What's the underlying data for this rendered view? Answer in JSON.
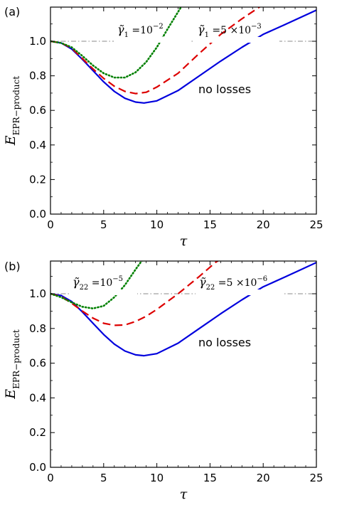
{
  "chart_data": [
    {
      "type": "line",
      "panel_label": "(a)",
      "xlabel": "τ",
      "ylabel_main": "E",
      "ylabel_sub": "EPR−product",
      "xlim": [
        0,
        25
      ],
      "ylim": [
        0,
        1.2
      ],
      "xticks": [
        0,
        5,
        10,
        15,
        20,
        25
      ],
      "yticks": [
        0.0,
        0.2,
        0.4,
        0.6,
        0.8,
        1.0
      ],
      "xtick_labels": [
        "0",
        "5",
        "10",
        "15",
        "20",
        "25"
      ],
      "ytick_labels": [
        "0.0",
        "0.2",
        "0.4",
        "0.6",
        "0.8",
        "1.0"
      ],
      "grid": false,
      "reference_line": {
        "y": 1.0,
        "color": "#888888",
        "style": "dash-dot"
      },
      "series": [
        {
          "color": "#0000dd",
          "style": "solid",
          "points": [
            [
              0,
              1.0
            ],
            [
              1,
              0.99
            ],
            [
              2,
              0.955
            ],
            [
              3,
              0.895
            ],
            [
              4,
              0.83
            ],
            [
              5,
              0.765
            ],
            [
              6,
              0.71
            ],
            [
              7,
              0.67
            ],
            [
              8,
              0.648
            ],
            [
              8.8,
              0.643
            ],
            [
              10,
              0.655
            ],
            [
              12,
              0.715
            ],
            [
              14,
              0.8
            ],
            [
              16,
              0.885
            ],
            [
              18,
              0.965
            ],
            [
              20,
              1.04
            ],
            [
              22,
              1.095
            ],
            [
              25,
              1.18
            ]
          ]
        },
        {
          "color": "#dd0000",
          "style": "dashed",
          "points": [
            [
              0,
              1.0
            ],
            [
              1,
              0.99
            ],
            [
              2,
              0.96
            ],
            [
              3,
              0.9
            ],
            [
              4,
              0.84
            ],
            [
              5,
              0.785
            ],
            [
              6,
              0.74
            ],
            [
              7,
              0.71
            ],
            [
              8,
              0.697
            ],
            [
              9,
              0.705
            ],
            [
              10,
              0.735
            ],
            [
              12,
              0.815
            ],
            [
              14,
              0.93
            ],
            [
              16,
              1.04
            ],
            [
              18,
              1.13
            ],
            [
              19.7,
              1.2
            ]
          ]
        },
        {
          "color": "#008000",
          "style": "dotted",
          "points": [
            [
              0,
              1.0
            ],
            [
              1,
              0.99
            ],
            [
              2,
              0.965
            ],
            [
              3,
              0.915
            ],
            [
              4,
              0.86
            ],
            [
              5,
              0.815
            ],
            [
              6,
              0.79
            ],
            [
              7,
              0.79
            ],
            [
              8,
              0.82
            ],
            [
              9,
              0.88
            ],
            [
              10,
              0.965
            ],
            [
              11,
              1.07
            ],
            [
              12,
              1.17
            ],
            [
              12.3,
              1.2
            ]
          ]
        }
      ],
      "annotations": {
        "green": {
          "prefix": "γ̃",
          "sub": "1",
          "text": " =10",
          "sup": "−2"
        },
        "red": {
          "prefix": "γ̃",
          "sub": "1",
          "text": " =5 ×10",
          "sup": "−3"
        },
        "blue": "no losses"
      }
    },
    {
      "type": "line",
      "panel_label": "(b)",
      "xlabel": "τ",
      "ylabel_main": "E",
      "ylabel_sub": "EPR−product",
      "xlim": [
        0,
        25
      ],
      "ylim": [
        0,
        1.2
      ],
      "xticks": [
        0,
        5,
        10,
        15,
        20,
        25
      ],
      "yticks": [
        0.0,
        0.2,
        0.4,
        0.6,
        0.8,
        1.0
      ],
      "xtick_labels": [
        "0",
        "5",
        "10",
        "15",
        "20",
        "25"
      ],
      "ytick_labels": [
        "0.0",
        "0.2",
        "0.4",
        "0.6",
        "0.8",
        "1.0"
      ],
      "grid": false,
      "reference_line": {
        "y": 1.0,
        "color": "#888888",
        "style": "dash-dot"
      },
      "series": [
        {
          "color": "#0000dd",
          "style": "solid",
          "points": [
            [
              0,
              1.0
            ],
            [
              1,
              0.99
            ],
            [
              2,
              0.955
            ],
            [
              3,
              0.895
            ],
            [
              4,
              0.83
            ],
            [
              5,
              0.765
            ],
            [
              6,
              0.71
            ],
            [
              7,
              0.67
            ],
            [
              8,
              0.648
            ],
            [
              8.8,
              0.643
            ],
            [
              10,
              0.655
            ],
            [
              12,
              0.715
            ],
            [
              14,
              0.8
            ],
            [
              16,
              0.885
            ],
            [
              18,
              0.965
            ],
            [
              20,
              1.04
            ],
            [
              22,
              1.095
            ],
            [
              25,
              1.18
            ]
          ]
        },
        {
          "color": "#dd0000",
          "style": "dashed",
          "points": [
            [
              0,
              1.0
            ],
            [
              1,
              0.985
            ],
            [
              2,
              0.945
            ],
            [
              3,
              0.9
            ],
            [
              4,
              0.86
            ],
            [
              5,
              0.83
            ],
            [
              6,
              0.818
            ],
            [
              7,
              0.82
            ],
            [
              8,
              0.84
            ],
            [
              9,
              0.87
            ],
            [
              10,
              0.91
            ],
            [
              12,
              1.0
            ],
            [
              14,
              1.1
            ],
            [
              15.5,
              1.18
            ],
            [
              16,
              1.2
            ]
          ]
        },
        {
          "color": "#008000",
          "style": "dotted",
          "points": [
            [
              0,
              1.0
            ],
            [
              1,
              0.98
            ],
            [
              2,
              0.95
            ],
            [
              3,
              0.925
            ],
            [
              4,
              0.915
            ],
            [
              5,
              0.93
            ],
            [
              6,
              0.98
            ],
            [
              7,
              1.05
            ],
            [
              8,
              1.14
            ],
            [
              8.7,
              1.2
            ]
          ]
        }
      ],
      "annotations": {
        "green": {
          "prefix": "γ̃",
          "sub": "22",
          "text": " =10",
          "sup": "−5"
        },
        "red": {
          "prefix": "γ̃",
          "sub": "22",
          "text": " =5 ×10",
          "sup": "−6"
        },
        "blue": "no losses"
      }
    }
  ]
}
